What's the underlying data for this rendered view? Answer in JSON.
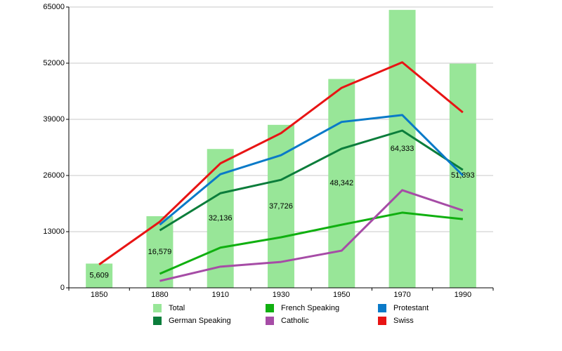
{
  "chart_data": {
    "type": "combo",
    "categories": [
      "1850",
      "1880",
      "1910",
      "1930",
      "1950",
      "1970",
      "1990"
    ],
    "ylim": [
      0,
      65000
    ],
    "yticks": [
      0,
      13000,
      26000,
      39000,
      52000,
      65000
    ],
    "grid": true,
    "series": [
      {
        "name": "Total",
        "type": "bar",
        "color": "#98e698",
        "values": [
          5609,
          16579,
          32136,
          37726,
          48342,
          64333,
          51893
        ],
        "value_labels": [
          "5,609",
          "16,579",
          "32,136",
          "37,726",
          "48,342",
          "64,333",
          "51,893"
        ]
      },
      {
        "name": "German Speaking",
        "type": "line",
        "color": "#0b7d3b",
        "values": [
          null,
          13300,
          21900,
          25000,
          32200,
          36400,
          27300
        ]
      },
      {
        "name": "French Speaking",
        "type": "line",
        "color": "#10b010",
        "values": [
          null,
          3250,
          9300,
          11700,
          14600,
          17400,
          15900
        ]
      },
      {
        "name": "Catholic",
        "type": "line",
        "color": "#a64ca6",
        "values": [
          null,
          1600,
          4900,
          6000,
          8600,
          22600,
          17900
        ]
      },
      {
        "name": "Protestant",
        "type": "line",
        "color": "#0a7ac8",
        "values": [
          null,
          14600,
          26300,
          30700,
          38400,
          40000,
          26000
        ]
      },
      {
        "name": "Swiss",
        "type": "line",
        "color": "#e81414",
        "values": [
          5400,
          15300,
          28800,
          35800,
          46300,
          52200,
          40600
        ]
      }
    ]
  }
}
